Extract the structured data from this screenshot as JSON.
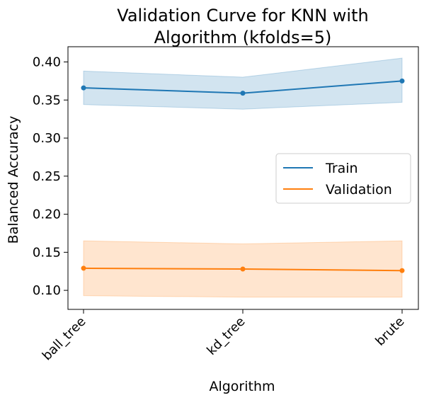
{
  "chart_data": {
    "type": "line",
    "title_lines": [
      "Validation Curve for KNN with",
      "Algorithm (kfolds=5)"
    ],
    "xlabel": "Algorithm",
    "ylabel": "Balanced Accuracy",
    "categories": [
      "ball_tree",
      "kd_tree",
      "brute"
    ],
    "ylim": [
      0.075,
      0.42
    ],
    "yticks": [
      0.1,
      0.15,
      0.2,
      0.25,
      0.3,
      0.35,
      0.4
    ],
    "ytick_labels": [
      "0.10",
      "0.15",
      "0.20",
      "0.25",
      "0.30",
      "0.35",
      "0.40"
    ],
    "grid": false,
    "legend_position": "center-right",
    "series": [
      {
        "name": "Train",
        "color": "#1f77b4",
        "values": [
          0.366,
          0.359,
          0.375
        ],
        "lower": [
          0.344,
          0.338,
          0.347
        ],
        "upper": [
          0.388,
          0.38,
          0.405
        ]
      },
      {
        "name": "Validation",
        "color": "#ff7f0e",
        "values": [
          0.129,
          0.128,
          0.126
        ],
        "lower": [
          0.093,
          0.091,
          0.091
        ],
        "upper": [
          0.165,
          0.161,
          0.165
        ]
      }
    ]
  }
}
